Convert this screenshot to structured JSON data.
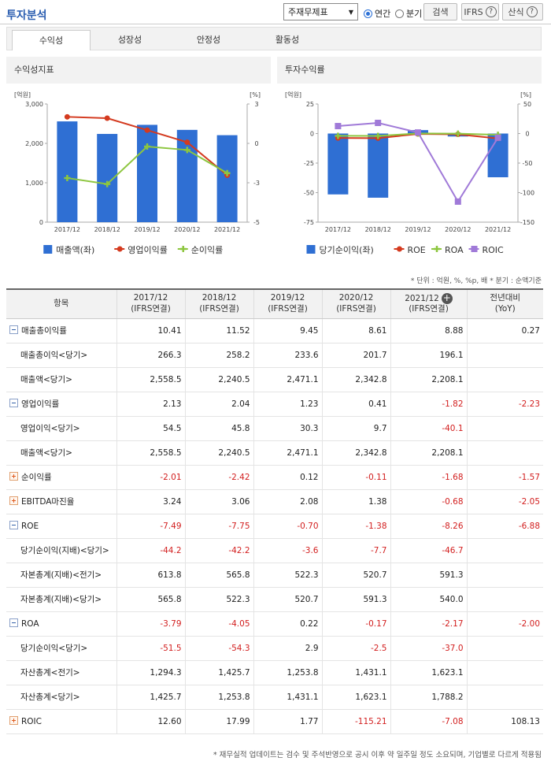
{
  "page": {
    "title": "투자분석"
  },
  "controls": {
    "select_value": "주재무제표",
    "radio_annual": "연간",
    "radio_quarter": "분기",
    "search_button": "검색",
    "ifrs_button": "IFRS",
    "formula_button": "산식",
    "help_glyph": "?"
  },
  "tabs": [
    "수익성",
    "성장성",
    "안정성",
    "활동성"
  ],
  "panels": {
    "left_title": "수익성지표",
    "right_title": "투자수익률"
  },
  "chart_data": [
    {
      "type": "bar+line",
      "title": "수익성지표",
      "categories": [
        "2017/12",
        "2018/12",
        "2019/12",
        "2020/12",
        "2021/12"
      ],
      "left_unit": "[억원]",
      "right_unit": "[%]",
      "left_ticks": [
        "3,000",
        "2,000",
        "1,000",
        "0"
      ],
      "right_ticks": [
        "3",
        "0",
        "-3",
        "-5"
      ],
      "ylim_left": [
        0,
        3000
      ],
      "ylim_right": [
        -5,
        3
      ],
      "bar_series": {
        "name": "매출액(좌)",
        "values": [
          2558.5,
          2240.5,
          2471.1,
          2342.8,
          2208.1
        ],
        "color": "#2f6fd3"
      },
      "line_series": [
        {
          "name": "영업이익률",
          "values": [
            2.13,
            2.04,
            1.23,
            0.41,
            -1.82
          ],
          "color": "#d43a1f"
        },
        {
          "name": "순이익률",
          "values": [
            -2.01,
            -2.42,
            0.12,
            -0.11,
            -1.68
          ],
          "color": "#8dc63f"
        }
      ],
      "legend": [
        "매출액(좌)",
        "영업이익률",
        "순이익률"
      ]
    },
    {
      "type": "bar+line",
      "title": "투자수익률",
      "categories": [
        "2017/12",
        "2018/12",
        "2019/12",
        "2020/12",
        "2021/12"
      ],
      "left_unit": "[억원]",
      "right_unit": "[%]",
      "left_ticks": [
        "25",
        "0",
        "-25",
        "-50",
        "-75"
      ],
      "right_ticks": [
        "50",
        "0",
        "-50",
        "-100",
        "-150"
      ],
      "ylim_left": [
        -75,
        25
      ],
      "ylim_right": [
        -150,
        50
      ],
      "bar_series": {
        "name": "당기순이익(좌)",
        "values": [
          -51.5,
          -54.3,
          2.9,
          -2.5,
          -37.0
        ],
        "color": "#2f6fd3"
      },
      "line_series": [
        {
          "name": "ROE",
          "values": [
            -7.49,
            -7.75,
            -0.7,
            -1.38,
            -8.26
          ],
          "color": "#d43a1f"
        },
        {
          "name": "ROA",
          "values": [
            -3.79,
            -4.05,
            0.22,
            -0.17,
            -2.17
          ],
          "color": "#8dc63f"
        },
        {
          "name": "ROIC",
          "values": [
            12.6,
            17.99,
            1.77,
            -115.21,
            -7.08
          ],
          "color": "#a07ad8"
        }
      ],
      "legend": [
        "당기순이익(좌)",
        "ROE",
        "ROA",
        "ROIC"
      ]
    }
  ],
  "note": "* 단위 : 억원, %, %p, 배   * 분기 : 순액기준",
  "table": {
    "header_label": "항목",
    "columns": [
      {
        "line1": "2017/12",
        "line2": "(IFRS연결)"
      },
      {
        "line1": "2018/12",
        "line2": "(IFRS연결)"
      },
      {
        "line1": "2019/12",
        "line2": "(IFRS연결)"
      },
      {
        "line1": "2020/12",
        "line2": "(IFRS연결)"
      },
      {
        "line1": "2021/12",
        "line2": "(IFRS연결)"
      },
      {
        "line1": "전년대비",
        "line2": "(YoY)"
      }
    ],
    "rows": [
      {
        "label": "매출총이익률",
        "toggle": "minus",
        "values": [
          "10.41",
          "11.52",
          "9.45",
          "8.61",
          "8.88",
          "0.27"
        ]
      },
      {
        "label": "매출총이익<당기>",
        "sub": true,
        "values": [
          "266.3",
          "258.2",
          "233.6",
          "201.7",
          "196.1",
          ""
        ]
      },
      {
        "label": "매출액<당기>",
        "sub": true,
        "values": [
          "2,558.5",
          "2,240.5",
          "2,471.1",
          "2,342.8",
          "2,208.1",
          ""
        ]
      },
      {
        "label": "영업이익률",
        "toggle": "minus",
        "values": [
          "2.13",
          "2.04",
          "1.23",
          "0.41",
          "-1.82",
          "-2.23"
        ]
      },
      {
        "label": "영업이익<당기>",
        "sub": true,
        "values": [
          "54.5",
          "45.8",
          "30.3",
          "9.7",
          "-40.1",
          ""
        ]
      },
      {
        "label": "매출액<당기>",
        "sub": true,
        "values": [
          "2,558.5",
          "2,240.5",
          "2,471.1",
          "2,342.8",
          "2,208.1",
          ""
        ]
      },
      {
        "label": "순이익률",
        "toggle": "plus",
        "values": [
          "-2.01",
          "-2.42",
          "0.12",
          "-0.11",
          "-1.68",
          "-1.57"
        ]
      },
      {
        "label": "EBITDA마진율",
        "toggle": "plus",
        "values": [
          "3.24",
          "3.06",
          "2.08",
          "1.38",
          "-0.68",
          "-2.05"
        ]
      },
      {
        "label": "ROE",
        "toggle": "minus",
        "values": [
          "-7.49",
          "-7.75",
          "-0.70",
          "-1.38",
          "-8.26",
          "-6.88"
        ]
      },
      {
        "label": "당기순이익(지배)<당기>",
        "sub": true,
        "values": [
          "-44.2",
          "-42.2",
          "-3.6",
          "-7.7",
          "-46.7",
          ""
        ]
      },
      {
        "label": "자본총계(지배)<전기>",
        "sub": true,
        "values": [
          "613.8",
          "565.8",
          "522.3",
          "520.7",
          "591.3",
          ""
        ]
      },
      {
        "label": "자본총계(지배)<당기>",
        "sub": true,
        "values": [
          "565.8",
          "522.3",
          "520.7",
          "591.3",
          "540.0",
          ""
        ]
      },
      {
        "label": "ROA",
        "toggle": "minus",
        "values": [
          "-3.79",
          "-4.05",
          "0.22",
          "-0.17",
          "-2.17",
          "-2.00"
        ]
      },
      {
        "label": "당기순이익<당기>",
        "sub": true,
        "values": [
          "-51.5",
          "-54.3",
          "2.9",
          "-2.5",
          "-37.0",
          ""
        ]
      },
      {
        "label": "자산총계<전기>",
        "sub": true,
        "values": [
          "1,294.3",
          "1,425.7",
          "1,253.8",
          "1,431.1",
          "1,623.1",
          ""
        ]
      },
      {
        "label": "자산총계<당기>",
        "sub": true,
        "values": [
          "1,425.7",
          "1,253.8",
          "1,431.1",
          "1,623.1",
          "1,788.2",
          ""
        ]
      },
      {
        "label": "ROIC",
        "toggle": "plus",
        "values": [
          "12.60",
          "17.99",
          "1.77",
          "-115.21",
          "-7.08",
          "108.13"
        ]
      }
    ]
  },
  "footer": "* 재무실적 업데이트는 검수 및 주석반영으로 공시 이후 약 일주일 정도 소요되며, 기업별로 다르게 적용됨"
}
